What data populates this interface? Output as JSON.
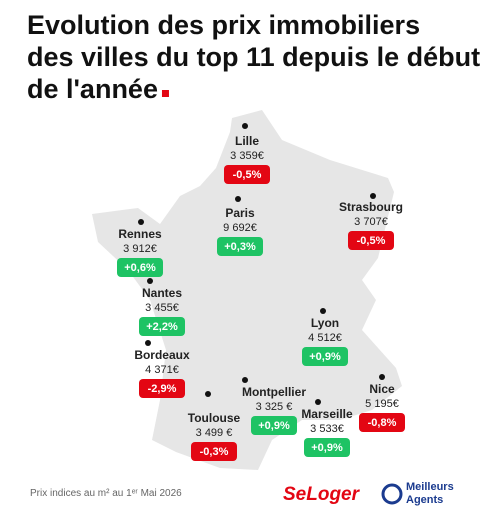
{
  "header": {
    "title_lines": [
      "Evolution des prix immobiliers",
      "des villes du top 11 depuis le début",
      "de l'année"
    ]
  },
  "cities": [
    {
      "name": "Lille",
      "price": "3 359€",
      "change": "-0,5%",
      "badge_color": "#e30613"
    },
    {
      "name": "Strasbourg",
      "price": "3 707€",
      "change": "-0,5%",
      "badge_color": "#e30613"
    },
    {
      "name": "Paris",
      "price": "9 692€",
      "change": "+0,3%",
      "badge_color": "#1ec364"
    },
    {
      "name": "Rennes",
      "price": "3 912€",
      "change": "+0,6%",
      "badge_color": "#1ec364"
    },
    {
      "name": "Nantes",
      "price": "3 455€",
      "change": "+2,2%",
      "badge_color": "#1ec364"
    },
    {
      "name": "Lyon",
      "price": "4 512€",
      "change": "+0,9%",
      "badge_color": "#1ec364"
    },
    {
      "name": "Bordeaux",
      "price": "4 371€",
      "change": "-2,9%",
      "badge_color": "#e30613"
    },
    {
      "name": "Nice",
      "price": "5 195€",
      "change": "-0,8%",
      "badge_color": "#e30613"
    },
    {
      "name": "Montpellier",
      "price": "3 325 €",
      "change": "+0,9%",
      "badge_color": "#1ec364"
    },
    {
      "name": "Marseille",
      "price": "3 533€",
      "change": "+0,9%",
      "badge_color": "#1ec364"
    },
    {
      "name": "Toulouse",
      "price": "3 499 €",
      "change": "-0,3%",
      "badge_color": "#e30613"
    }
  ],
  "footer": {
    "note": "Prix indices au m² au 1ᵉʳ Mai 2026",
    "logo_1": "SeLoger",
    "logo_2_lines": [
      "Meilleurs",
      "Agents"
    ]
  }
}
